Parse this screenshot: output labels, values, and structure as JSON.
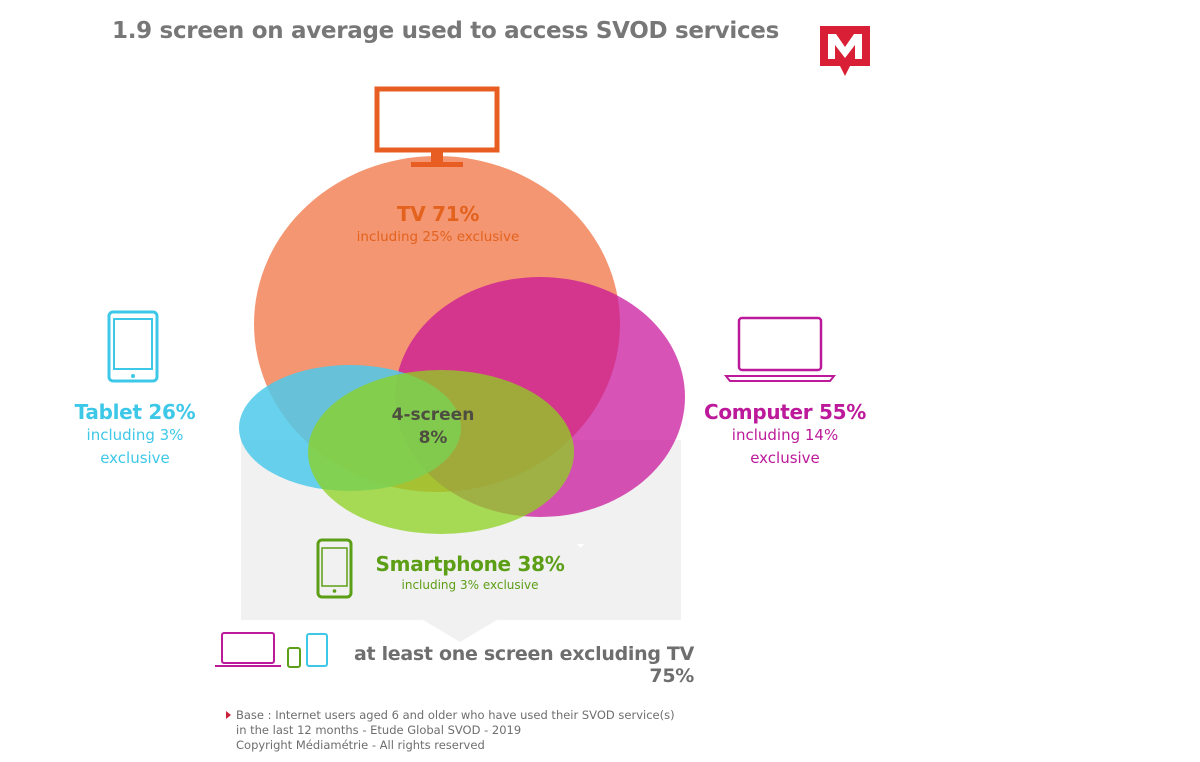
{
  "title": "1.9 screen on average used to access SVOD services",
  "logo": {
    "name": "mediametrie-logo",
    "letter": "M",
    "color": "#d91f35"
  },
  "colors": {
    "tv": "#ef6a34",
    "computer": "#c91c9a",
    "tablet": "#4dc9ea",
    "smartphone": "#7fc21b",
    "panel": "#f1f1f1",
    "text_gray": "#6e6e6e"
  },
  "sets": {
    "tv": {
      "name": "TV 71%",
      "sub": "including 25% exclusive",
      "icon": "tv-icon",
      "share": 71,
      "exclusive": 25
    },
    "tablet": {
      "name": "Tablet 26%",
      "sub_lines": [
        "including 3%",
        "exclusive"
      ],
      "icon": "tablet-icon",
      "share": 26,
      "exclusive": 3
    },
    "computer": {
      "name": "Computer 55%",
      "sub_lines": [
        "including 14%",
        "exclusive"
      ],
      "icon": "laptop-icon",
      "share": 55,
      "exclusive": 14
    },
    "smartphone": {
      "name": "Smartphone 38%",
      "sub": "including 3% exclusive",
      "icon": "smartphone-icon",
      "share": 38,
      "exclusive": 3
    }
  },
  "intersection": {
    "line1": "4-screen",
    "line2": "8%",
    "share": 8
  },
  "excluding_tv": {
    "text": "at least one screen excluding TV",
    "value": "75%",
    "share": 75
  },
  "footnote": {
    "lines": [
      "Base : Internet users aged 6 and older who have used their SVOD service(s)",
      "in the last 12 months - Etude Global SVOD - 2019",
      "Copyright Médiamétrie - All rights reserved"
    ]
  }
}
